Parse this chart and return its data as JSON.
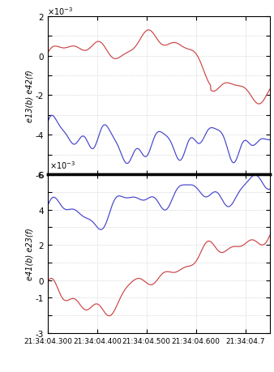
{
  "x_ticks_labels": [
    "21:34:04.300",
    "21:34:04.400",
    "21:34:04.500",
    "21:34:04.600",
    "21:34:04.7"
  ],
  "top_ylabel": "e13(b) e42(f)",
  "bottom_ylabel": "e41(b) e23(f)",
  "red_color": "#cc4444",
  "blue_color": "#4444cc",
  "bg_color": "#ffffff",
  "grid_color": "#aaaaaa"
}
